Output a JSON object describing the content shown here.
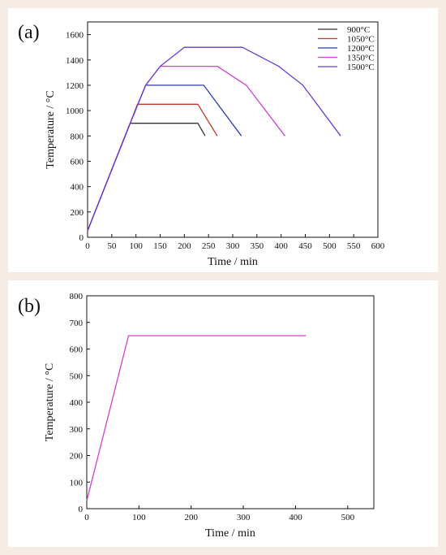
{
  "chart_data": [
    {
      "panel_label": "(a)",
      "type": "line",
      "xlabel": "Time / min",
      "ylabel": "Temperature / °C",
      "xlim": [
        0,
        600
      ],
      "ylim": [
        0,
        1700
      ],
      "xticks": [
        0,
        50,
        100,
        150,
        200,
        250,
        300,
        350,
        400,
        450,
        500,
        550,
        600
      ],
      "yticks": [
        0,
        200,
        400,
        600,
        800,
        1000,
        1200,
        1400,
        1600
      ],
      "grid": false,
      "legend": "top-right",
      "series": [
        {
          "name": "900°C",
          "color": "#333333",
          "points": [
            [
              0,
              50
            ],
            [
              7,
              120
            ],
            [
              88,
              900
            ],
            [
              228,
              900
            ],
            [
              243,
              800
            ]
          ]
        },
        {
          "name": "1050°C",
          "color": "#c0392b",
          "points": [
            [
              0,
              50
            ],
            [
              7,
              120
            ],
            [
              88,
              900
            ],
            [
              103,
              1050
            ],
            [
              228,
              1050
            ],
            [
              268,
              800
            ]
          ]
        },
        {
          "name": "1200°C",
          "color": "#2a3ca8",
          "points": [
            [
              0,
              50
            ],
            [
              7,
              120
            ],
            [
              88,
              900
            ],
            [
              120,
              1200
            ],
            [
              240,
              1200
            ],
            [
              318,
              800
            ]
          ]
        },
        {
          "name": "1350°C",
          "color": "#d040d0",
          "points": [
            [
              0,
              50
            ],
            [
              7,
              120
            ],
            [
              88,
              900
            ],
            [
              120,
              1200
            ],
            [
              150,
              1350
            ],
            [
              268,
              1350
            ],
            [
              328,
              1200
            ],
            [
              408,
              800
            ]
          ]
        },
        {
          "name": "1500°C",
          "color": "#6a3ad0",
          "points": [
            [
              0,
              50
            ],
            [
              7,
              120
            ],
            [
              88,
              900
            ],
            [
              120,
              1200
            ],
            [
              150,
              1350
            ],
            [
              200,
              1500
            ],
            [
              320,
              1500
            ],
            [
              395,
              1350
            ],
            [
              445,
              1200
            ],
            [
              523,
              800
            ]
          ]
        }
      ]
    },
    {
      "panel_label": "(b)",
      "type": "line",
      "xlabel": "Time / min",
      "ylabel": "Temperature / °C",
      "xlim": [
        0,
        550
      ],
      "ylim": [
        0,
        800
      ],
      "xticks": [
        0,
        100,
        200,
        300,
        400,
        500
      ],
      "yticks": [
        0,
        100,
        200,
        300,
        400,
        500,
        600,
        700,
        800
      ],
      "grid": false,
      "series": [
        {
          "color": "#d040d0",
          "points": [
            [
              0,
              30
            ],
            [
              80,
              650
            ],
            [
              420,
              650
            ]
          ]
        }
      ]
    }
  ]
}
